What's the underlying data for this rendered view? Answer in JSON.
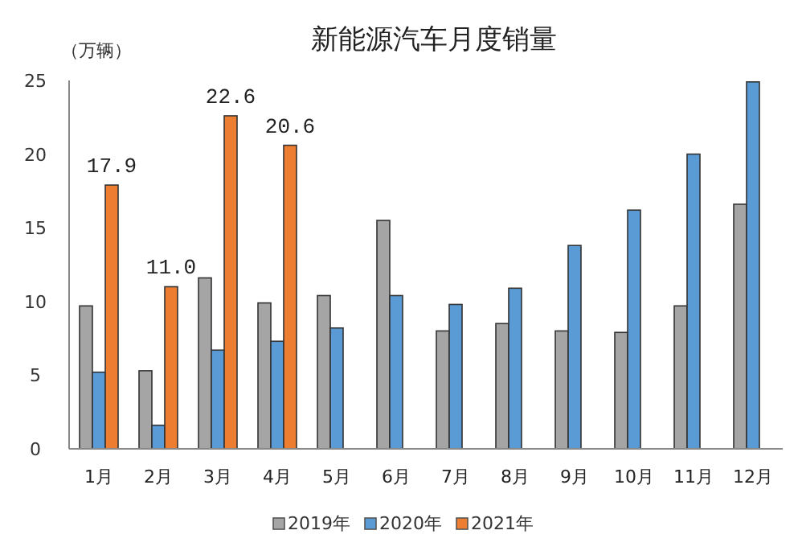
{
  "chart_data": {
    "type": "bar",
    "title": "新能源汽车月度销量",
    "ylabel": "（万辆）",
    "categories": [
      "1月",
      "2月",
      "3月",
      "4月",
      "5月",
      "6月",
      "7月",
      "8月",
      "9月",
      "10月",
      "11月",
      "12月"
    ],
    "series": [
      {
        "name": "2019年",
        "color": "#a5a5a5",
        "values": [
          9.7,
          5.3,
          11.6,
          9.9,
          10.4,
          15.5,
          8.0,
          8.5,
          8.0,
          7.9,
          9.7,
          16.6
        ]
      },
      {
        "name": "2020年",
        "color": "#5b9bd5",
        "values": [
          5.2,
          1.6,
          6.7,
          7.3,
          8.2,
          10.4,
          9.8,
          10.9,
          13.8,
          16.2,
          20.0,
          24.9
        ]
      },
      {
        "name": "2021年",
        "color": "#ed7d31",
        "values": [
          17.9,
          11.0,
          22.6,
          20.6,
          null,
          null,
          null,
          null,
          null,
          null,
          null,
          null
        ],
        "value_labels": [
          "17.9",
          "11.0",
          "22.6",
          "20.6",
          null,
          null,
          null,
          null,
          null,
          null,
          null,
          null
        ]
      }
    ],
    "ylim": [
      0,
      25
    ],
    "yticks": [
      0,
      5,
      10,
      15,
      20,
      25
    ],
    "legend": "bottom"
  }
}
